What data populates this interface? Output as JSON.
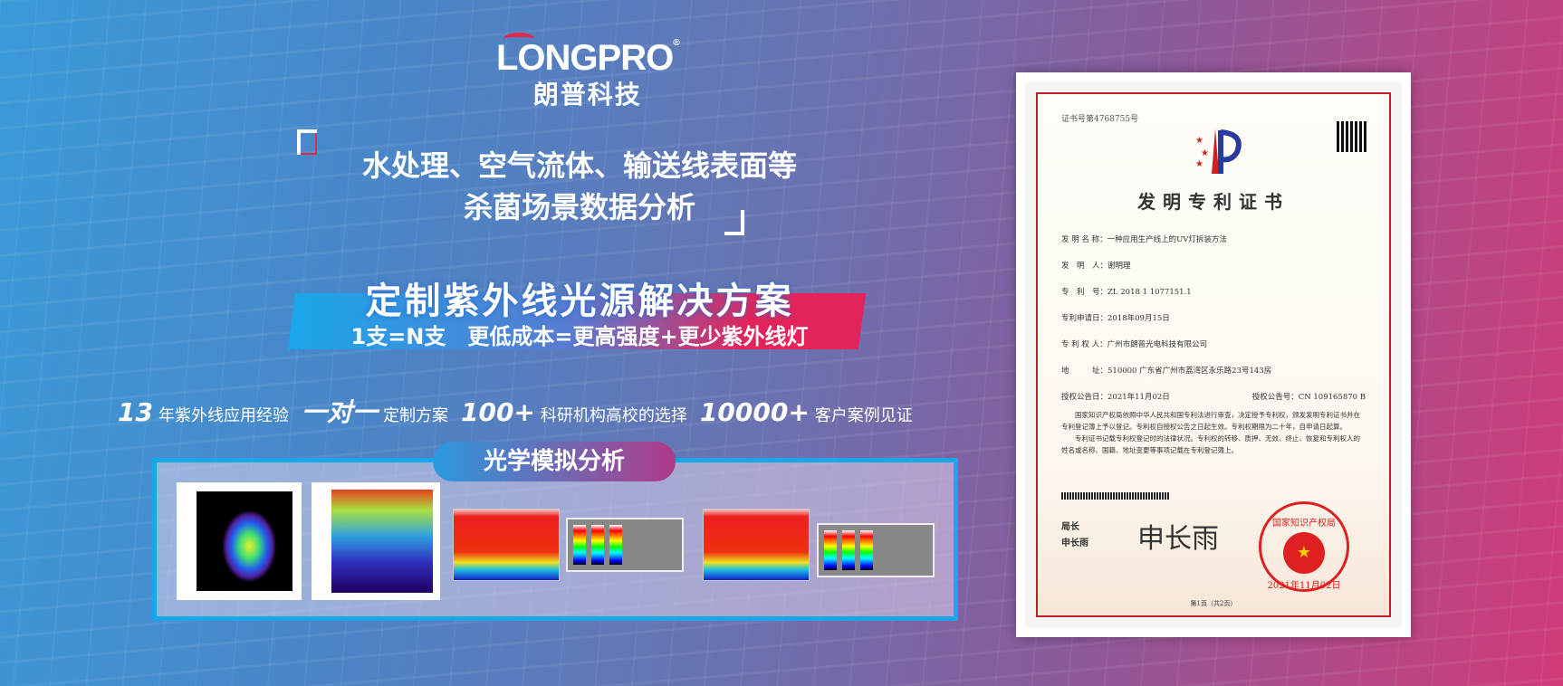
{
  "brand": {
    "name_en": "LONGPRO",
    "registered": "®",
    "name_cn": "朗普科技",
    "accent": "#e3284d"
  },
  "headline": {
    "line1": "水处理、空气流体、输送线表面等",
    "line2": "杀菌场景数据分析"
  },
  "solution": {
    "title": "定制紫外线光源解决方案",
    "subtitle": "1支=N支　更低成本=更高强度+更少紫外线灯"
  },
  "stats": [
    {
      "big": "13",
      "text": "年紫外线应用经验"
    },
    {
      "big": "一对一",
      "text": "定制方案"
    },
    {
      "big": "100+",
      "text": "科研机构高校的选择"
    },
    {
      "big": "10000+",
      "text": "客户案例见证"
    }
  ],
  "analysis": {
    "title": "光学模拟分析"
  },
  "certificate": {
    "number": "证书号第4768755号",
    "title": "发明专利证书",
    "fields": [
      "发 明 名 称：一种应用生产线上的UV灯拆装方法",
      "发　明　人：谢明理",
      "专　利　号：ZL 2018 1 1077151.1",
      "专利申请日：2018年09月15日",
      "专 利 权 人：广州市朗普光电科技有限公司",
      "地　　　址：510000 广东省广州市荔湾区永乐路23号143房"
    ],
    "grant_date": "授权公告日：2021年11月02日",
    "grant_no": "授权公告号：CN 109165870 B",
    "body1": "国家知识产权局依照中华人民共和国专利法进行审查，决定授予专利权，颁发发明专利证书并在专利登记簿上予以登记。专利权自授权公告之日起生效。专利权期限为二十年，自申请日起算。",
    "body2": "专利证书记载专利权登记时的法律状况。专利权的转移、质押、无效、终止、恢复和专利权人的姓名或名称、国籍、地址变更等事项记载在专利登记簿上。",
    "signer_title": "局长",
    "signer_name": "申长雨",
    "signature": "申长雨",
    "seal_text": "国家知识产权局",
    "seal_date": "2021年11月02日",
    "page": "第1页（共2页）"
  }
}
